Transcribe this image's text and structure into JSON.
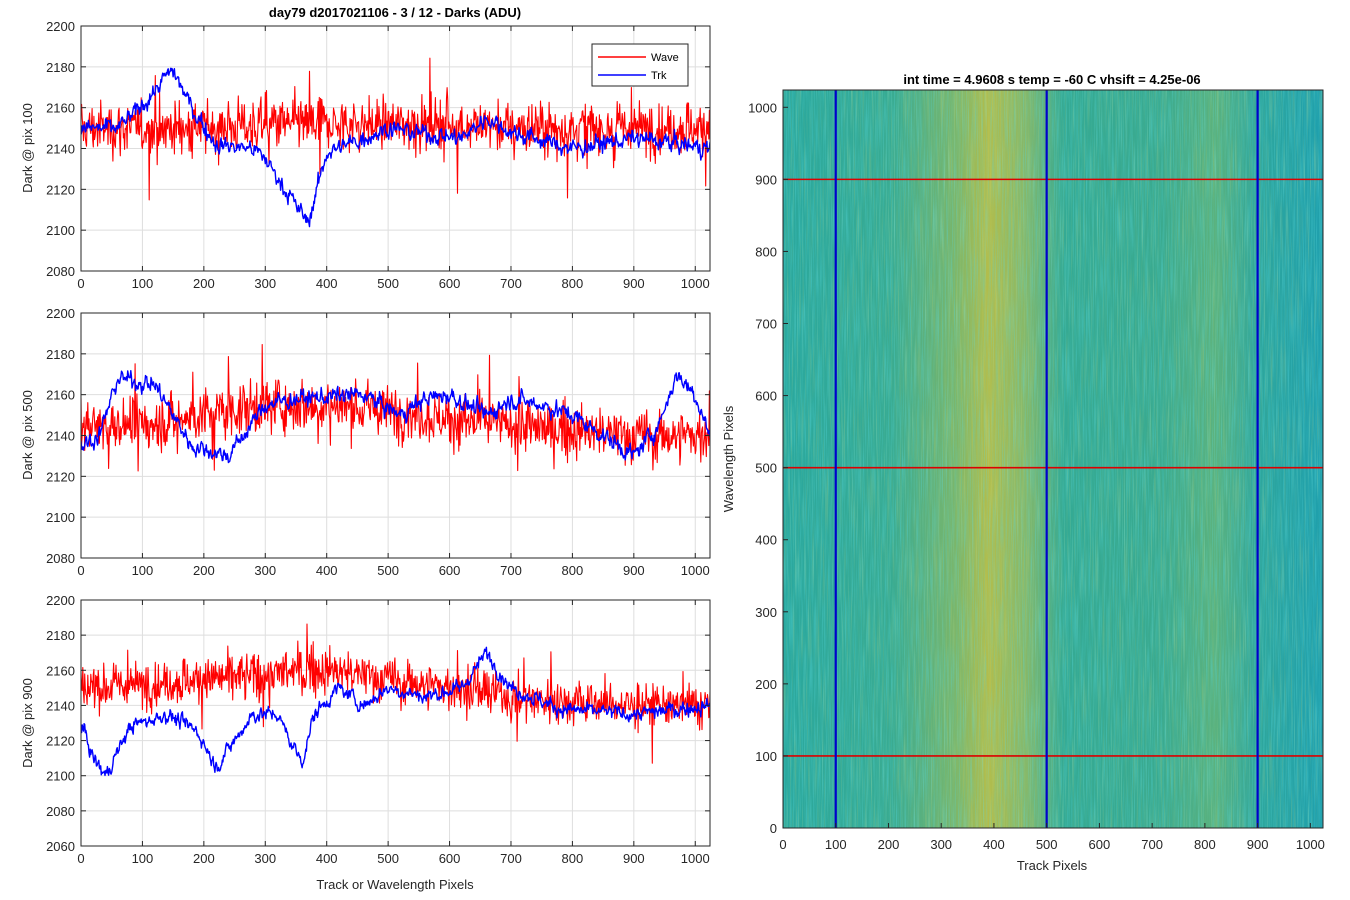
{
  "chart_data": [
    {
      "type": "line",
      "title": "day79 d2017021106 - 3 / 12 - Darks (ADU)",
      "xlabel": "",
      "ylabel": "Dark @ pix 100",
      "xlim": [
        0,
        1024
      ],
      "ylim": [
        2080,
        2200
      ],
      "xticks": [
        0,
        100,
        200,
        300,
        400,
        500,
        600,
        700,
        800,
        900,
        1000
      ],
      "yticks": [
        2080,
        2100,
        2120,
        2140,
        2160,
        2180,
        2200
      ],
      "grid": true,
      "legend": {
        "position": "top-right",
        "entries": [
          "Wave",
          "Trk"
        ]
      },
      "series": [
        {
          "name": "Wave",
          "color": "#ff0000",
          "x": [
            0,
            100,
            200,
            300,
            400,
            500,
            600,
            700,
            800,
            900,
            1024
          ],
          "values": [
            2150,
            2150,
            2150,
            2152,
            2152,
            2152,
            2152,
            2150,
            2150,
            2150,
            2150
          ]
        },
        {
          "name": "Trk",
          "color": "#0000ff",
          "x": [
            0,
            60,
            90,
            120,
            140,
            150,
            180,
            220,
            280,
            300,
            350,
            370,
            400,
            460,
            500,
            540,
            620,
            660,
            700,
            800,
            900,
            1024
          ],
          "values": [
            2150,
            2150,
            2158,
            2168,
            2176,
            2178,
            2160,
            2142,
            2140,
            2135,
            2112,
            2104,
            2138,
            2145,
            2150,
            2148,
            2145,
            2155,
            2148,
            2140,
            2145,
            2140
          ]
        }
      ]
    },
    {
      "type": "line",
      "title": "",
      "xlabel": "",
      "ylabel": "Dark @ pix 500",
      "xlim": [
        0,
        1024
      ],
      "ylim": [
        2080,
        2200
      ],
      "xticks": [
        0,
        100,
        200,
        300,
        400,
        500,
        600,
        700,
        800,
        900,
        1000
      ],
      "yticks": [
        2080,
        2100,
        2120,
        2140,
        2160,
        2180,
        2200
      ],
      "grid": true,
      "series": [
        {
          "name": "Wave",
          "color": "#ff0000",
          "x": [
            0,
            100,
            200,
            300,
            400,
            500,
            600,
            700,
            800,
            900,
            1024
          ],
          "values": [
            2145,
            2145,
            2150,
            2155,
            2155,
            2152,
            2148,
            2145,
            2142,
            2140,
            2140
          ]
        },
        {
          "name": "Trk",
          "color": "#0000ff",
          "x": [
            0,
            30,
            60,
            120,
            180,
            240,
            300,
            350,
            460,
            520,
            560,
            600,
            660,
            700,
            750,
            800,
            860,
            900,
            940,
            970,
            1000,
            1024
          ],
          "values": [
            2135,
            2140,
            2168,
            2165,
            2135,
            2130,
            2155,
            2158,
            2160,
            2150,
            2158,
            2160,
            2150,
            2158,
            2155,
            2150,
            2138,
            2130,
            2145,
            2170,
            2160,
            2140
          ]
        }
      ]
    },
    {
      "type": "line",
      "title": "",
      "xlabel": "Track or Wavelength Pixels",
      "ylabel": "Dark @ pix 900",
      "xlim": [
        0,
        1024
      ],
      "ylim": [
        2060,
        2200
      ],
      "xticks": [
        0,
        100,
        200,
        300,
        400,
        500,
        600,
        700,
        800,
        900,
        1000
      ],
      "yticks": [
        2060,
        2080,
        2100,
        2120,
        2140,
        2160,
        2180,
        2200
      ],
      "grid": true,
      "series": [
        {
          "name": "Wave",
          "color": "#ff0000",
          "x": [
            0,
            100,
            200,
            300,
            400,
            500,
            600,
            700,
            800,
            900,
            1024
          ],
          "values": [
            2150,
            2152,
            2155,
            2158,
            2160,
            2155,
            2150,
            2145,
            2142,
            2140,
            2140
          ]
        },
        {
          "name": "Trk",
          "color": "#0000ff",
          "x": [
            0,
            20,
            40,
            80,
            140,
            190,
            220,
            240,
            280,
            320,
            340,
            360,
            380,
            420,
            460,
            500,
            560,
            620,
            660,
            700,
            780,
            900,
            1024
          ],
          "values": [
            2130,
            2110,
            2100,
            2128,
            2135,
            2125,
            2105,
            2115,
            2135,
            2135,
            2120,
            2108,
            2135,
            2150,
            2140,
            2150,
            2145,
            2150,
            2170,
            2150,
            2138,
            2135,
            2140
          ]
        }
      ]
    },
    {
      "type": "heatmap",
      "title": "int time = 4.9608 s    temp = -60 C    vhsift = 4.25e-06",
      "xlabel": "Track Pixels",
      "ylabel": "Wavelength Pixels",
      "xlim": [
        0,
        1024
      ],
      "ylim": [
        0,
        1024
      ],
      "xticks": [
        0,
        100,
        200,
        300,
        400,
        500,
        600,
        700,
        800,
        900,
        1000
      ],
      "yticks": [
        0,
        100,
        200,
        300,
        400,
        500,
        600,
        700,
        800,
        900,
        1000
      ],
      "colors": {
        "low": "#1aa3b0",
        "mid": "#3aae8c",
        "high": "#c7c03d"
      },
      "bright_band_center": 380,
      "vertical_lines": {
        "color": "#0000cc",
        "at": [
          100,
          500,
          900
        ]
      },
      "horizontal_lines": {
        "color": "#dd0000",
        "at": [
          100,
          500,
          900
        ]
      }
    }
  ]
}
